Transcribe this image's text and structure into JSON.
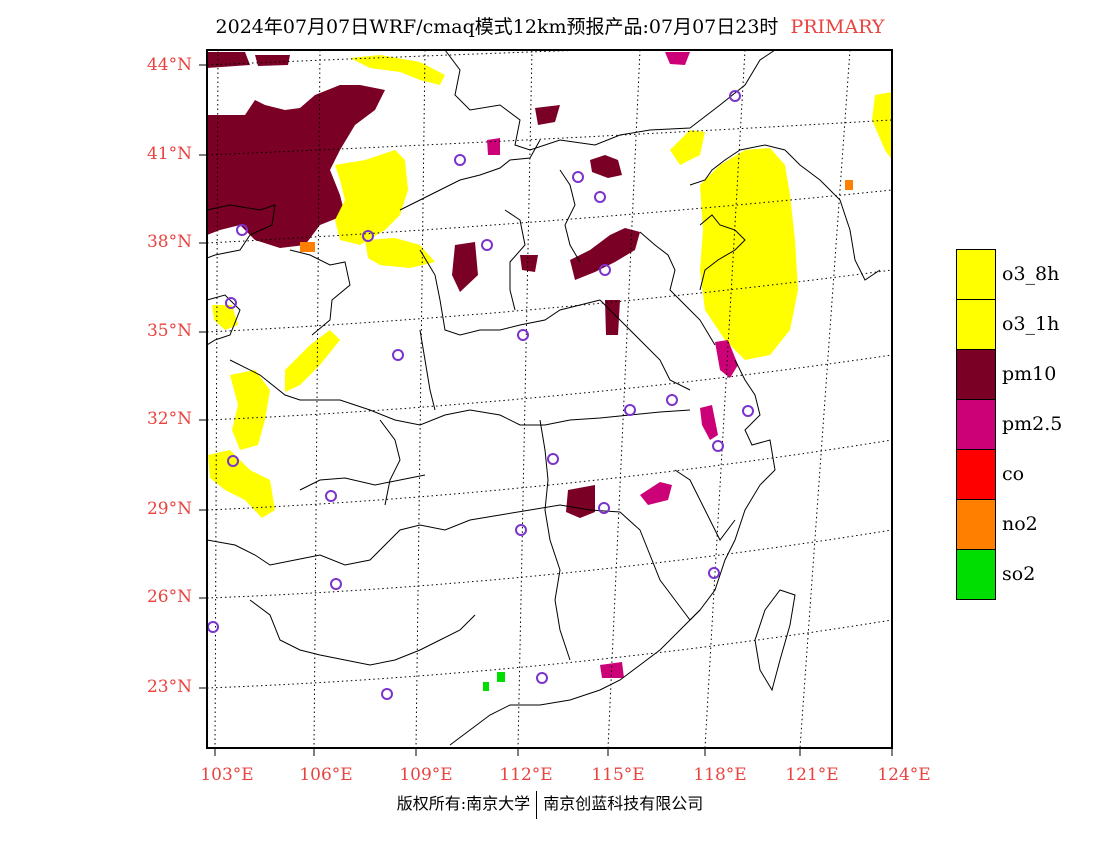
{
  "title": {
    "main": "2024年07月07日WRF/cmaq模式12km预报产品:07月07日23时",
    "tag": "PRIMARY"
  },
  "axes": {
    "lat_labels": [
      "44°N",
      "41°N",
      "38°N",
      "35°N",
      "32°N",
      "29°N",
      "26°N",
      "23°N"
    ],
    "lon_labels": [
      "103°E",
      "106°E",
      "109°E",
      "112°E",
      "115°E",
      "118°E",
      "121°E",
      "124°E"
    ]
  },
  "legend": [
    {
      "label": "o3_8h",
      "color": "#ffff00"
    },
    {
      "label": "o3_1h",
      "color": "#ffff00"
    },
    {
      "label": "pm10",
      "color": "#7a0026"
    },
    {
      "label": "pm2.5",
      "color": "#cc0077"
    },
    {
      "label": "co",
      "color": "#ff0000"
    },
    {
      "label": "no2",
      "color": "#ff7f00"
    },
    {
      "label": "so2",
      "color": "#00dd00"
    }
  ],
  "copyright": {
    "left": "版权所有:南京大学",
    "right": "南京创蓝科技有限公司"
  }
}
